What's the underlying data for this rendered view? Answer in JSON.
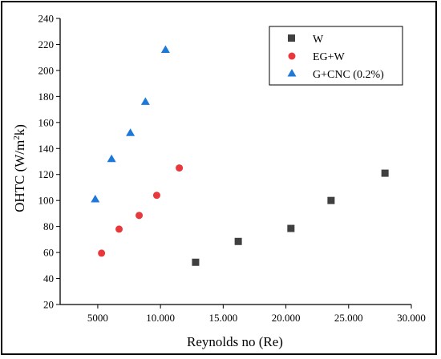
{
  "chart_data": {
    "type": "scatter",
    "xlabel": "Reynolds no (Re)",
    "ylabel_main": "OHTC (W/m",
    "ylabel_sup": "2",
    "ylabel_tail": "k)",
    "xlim": [
      2000,
      30000
    ],
    "ylim": [
      20,
      240
    ],
    "x_ticks": [
      5000,
      10000,
      15000,
      20000,
      25000,
      30000
    ],
    "x_tick_labels": [
      "5000",
      "10.000",
      "15.000",
      "20.000",
      "25.000",
      "30.000"
    ],
    "y_ticks": [
      20,
      40,
      60,
      80,
      100,
      120,
      140,
      160,
      180,
      200,
      220,
      240
    ],
    "y_tick_labels": [
      "20",
      "40",
      "60",
      "80",
      "100",
      "120",
      "140",
      "160",
      "180",
      "200",
      "220",
      "240"
    ],
    "legend_position": "top-right",
    "grid": false,
    "series": [
      {
        "name": "W",
        "marker": "square",
        "color": "#404040",
        "x": [
          12800,
          16200,
          20400,
          23600,
          27900
        ],
        "y": [
          52.5,
          68.5,
          78.5,
          100,
          121
        ]
      },
      {
        "name": "EG+W",
        "marker": "circle",
        "color": "#e8383b",
        "x": [
          5300,
          6700,
          8300,
          9700,
          11500
        ],
        "y": [
          59.5,
          78,
          88.5,
          104,
          125
        ]
      },
      {
        "name": "G+CNC (0.2%)",
        "marker": "triangle",
        "color": "#1e78d8",
        "x": [
          4800,
          6100,
          7600,
          8800,
          10400
        ],
        "y": [
          101,
          132,
          152,
          176,
          216
        ]
      }
    ]
  }
}
